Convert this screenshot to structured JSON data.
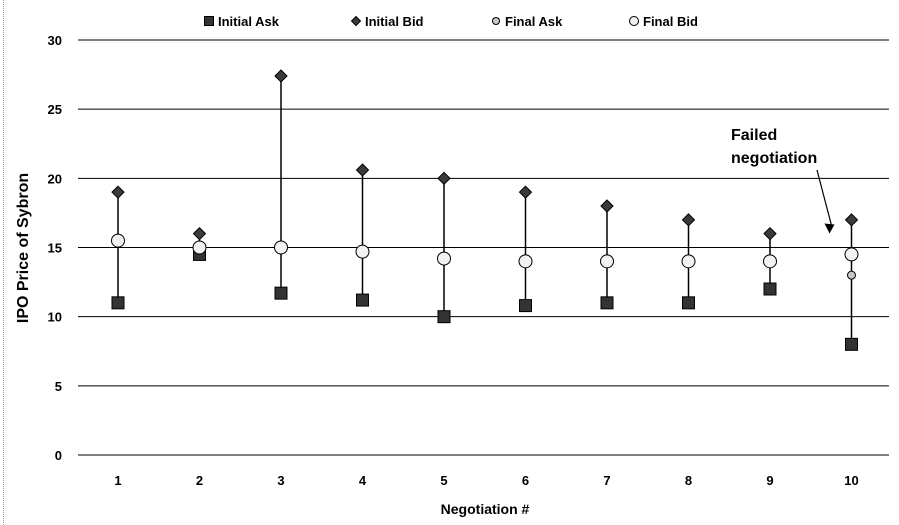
{
  "chart_data": {
    "type": "scatter",
    "title": "",
    "xlabel": "Negotiation #",
    "ylabel": "IPO Price of Sybron",
    "ylim": [
      0,
      30
    ],
    "yticks": [
      "0",
      "5",
      "10",
      "15",
      "20",
      "25",
      "30"
    ],
    "categories": [
      "1",
      "2",
      "3",
      "4",
      "5",
      "6",
      "7",
      "8",
      "9",
      "10"
    ],
    "grid": true,
    "legend_position": "top",
    "series": [
      {
        "name": "Initial Ask",
        "marker": "square",
        "color": "#333333",
        "values": [
          11,
          14.5,
          11.7,
          11.2,
          10,
          10.8,
          11,
          11,
          12,
          8
        ]
      },
      {
        "name": "Initial Bid",
        "marker": "diamond",
        "color": "#3a3a3a",
        "values": [
          19,
          16,
          27.4,
          20.6,
          20,
          19,
          18,
          17,
          16,
          17
        ]
      },
      {
        "name": "Final Ask",
        "marker": "small-circle",
        "color": "#c8c8c8",
        "values": [
          null,
          null,
          null,
          null,
          null,
          null,
          null,
          null,
          null,
          13
        ]
      },
      {
        "name": "Final Bid",
        "marker": "circle",
        "color": "#f2f2f2",
        "values": [
          15.5,
          15,
          15,
          14.7,
          14.2,
          14,
          14,
          14,
          14,
          14.5
        ]
      }
    ],
    "annotations": [
      {
        "text_lines": [
          "Failed",
          "negotiation"
        ],
        "target_category": "10"
      }
    ]
  }
}
